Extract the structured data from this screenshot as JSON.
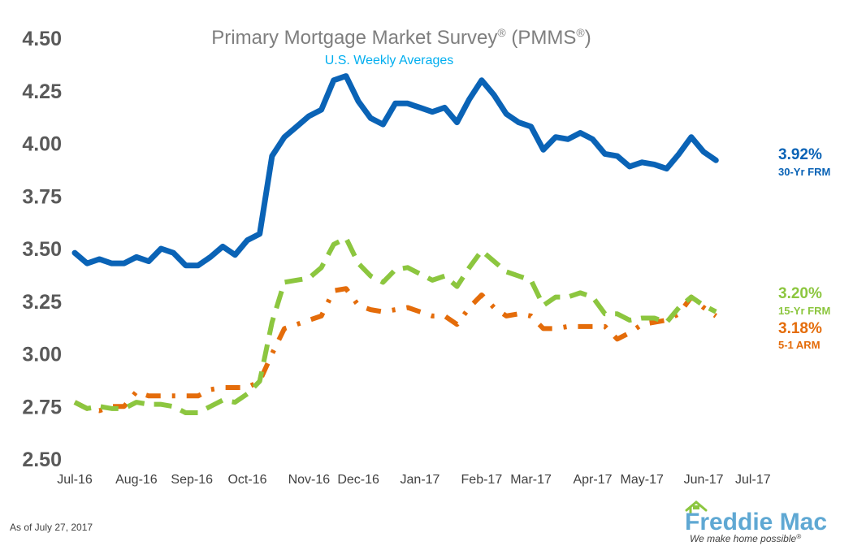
{
  "chart_data": {
    "type": "line",
    "title": "Primary Mortgage Market Survey",
    "title_trademark_a": "®",
    "title_paren": " (PMMS",
    "title_trademark_b": "®",
    "title_close": ")",
    "subtitle": "U.S. Weekly Averages",
    "ylim": [
      2.5,
      4.5
    ],
    "y_ticks": [
      "4.50",
      "4.25",
      "4.00",
      "3.75",
      "3.50",
      "3.25",
      "3.00",
      "2.75",
      "2.50"
    ],
    "x_tick_labels": [
      "Jul-16",
      "Aug-16",
      "Sep-16",
      "Oct-16",
      "Nov-16",
      "Dec-16",
      "Jan-17",
      "Feb-17",
      "Mar-17",
      "Apr-17",
      "May-17",
      "Jun-17",
      "Jul-17"
    ],
    "x_range_weeks": [
      0,
      56
    ],
    "x_tick_positions_weeks": [
      0,
      5,
      9.5,
      14,
      19,
      23,
      28,
      33,
      37,
      42,
      46,
      51,
      55
    ],
    "series": [
      {
        "name": "30-Yr FRM",
        "end_value": "3.92%",
        "color": "#0a63b6",
        "style": "solid",
        "values": [
          3.48,
          3.43,
          3.45,
          3.43,
          3.43,
          3.46,
          3.44,
          3.5,
          3.48,
          3.42,
          3.42,
          3.46,
          3.51,
          3.47,
          3.54,
          3.57,
          3.94,
          4.03,
          4.08,
          4.13,
          4.16,
          4.3,
          4.32,
          4.2,
          4.12,
          4.09,
          4.19,
          4.19,
          4.17,
          4.15,
          4.17,
          4.1,
          4.21,
          4.3,
          4.23,
          4.14,
          4.1,
          4.08,
          3.97,
          4.03,
          4.02,
          4.05,
          4.02,
          3.95,
          3.94,
          3.89,
          3.91,
          3.9,
          3.88,
          3.95,
          4.03,
          3.96,
          3.92
        ]
      },
      {
        "name": "15-Yr FRM",
        "end_value": "3.20%",
        "color": "#8cc63f",
        "style": "dashed",
        "values": [
          2.77,
          2.74,
          2.75,
          2.74,
          2.74,
          2.77,
          2.76,
          2.76,
          2.75,
          2.72,
          2.72,
          2.75,
          2.78,
          2.77,
          2.81,
          2.87,
          3.15,
          3.34,
          3.35,
          3.36,
          3.41,
          3.52,
          3.55,
          3.43,
          3.37,
          3.34,
          3.4,
          3.41,
          3.38,
          3.35,
          3.37,
          3.32,
          3.41,
          3.49,
          3.44,
          3.39,
          3.37,
          3.35,
          3.23,
          3.27,
          3.27,
          3.29,
          3.27,
          3.19,
          3.19,
          3.16,
          3.17,
          3.17,
          3.15,
          3.22,
          3.27,
          3.23,
          3.2
        ]
      },
      {
        "name": "5-1 ARM",
        "end_value": "3.18%",
        "color": "#e46c0a",
        "style": "dashdot",
        "values": [
          2.77,
          2.74,
          2.73,
          2.75,
          2.75,
          2.82,
          2.8,
          2.8,
          2.8,
          2.8,
          2.8,
          2.83,
          2.84,
          2.84,
          2.84,
          2.87,
          3.0,
          3.12,
          3.14,
          3.16,
          3.18,
          3.3,
          3.31,
          3.23,
          3.21,
          3.2,
          3.21,
          3.22,
          3.2,
          3.18,
          3.18,
          3.14,
          3.22,
          3.28,
          3.22,
          3.18,
          3.19,
          3.18,
          3.12,
          3.12,
          3.13,
          3.13,
          3.13,
          3.13,
          3.07,
          3.1,
          3.14,
          3.15,
          3.16,
          3.19,
          3.27,
          3.22,
          3.18
        ]
      }
    ],
    "grid": false,
    "legend": "right-end labels"
  },
  "footer": {
    "as_of": "As of July 27, 2017",
    "logo_text": "Freddie Mac",
    "tagline": "We make home possible",
    "tagline_mark": "®"
  }
}
